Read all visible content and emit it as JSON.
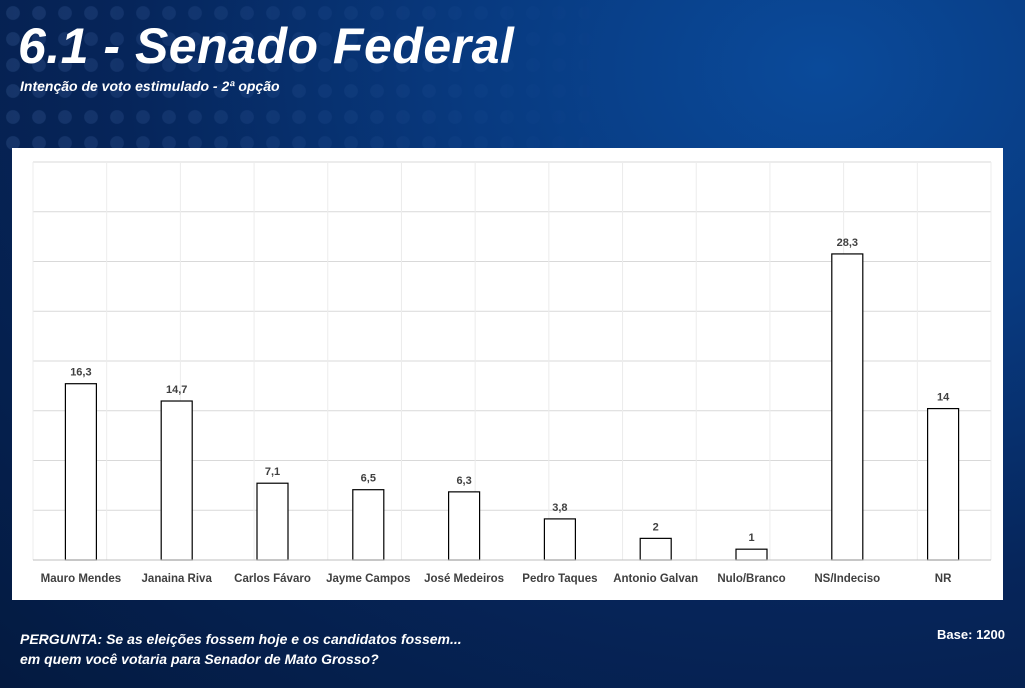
{
  "header": {
    "title": "6.1 - Senado Federal",
    "subtitle": "Intenção de voto estimulado - 2ª opção"
  },
  "footer": {
    "question_line1": "PERGUNTA:  Se as eleições fossem hoje e os candidatos fossem...",
    "question_line2": "em quem você votaria para Senador de Mato Grosso?",
    "base": "Base: 1200"
  },
  "chart_data": {
    "type": "bar",
    "title": "",
    "xlabel": "",
    "ylabel": "",
    "categories": [
      "Mauro Mendes",
      "Janaina Riva",
      "Carlos Fávaro",
      "Jayme Campos",
      "José Medeiros",
      "Pedro Taques",
      "Antonio Galvan",
      "Nulo/Branco",
      "NS/Indeciso",
      "NR"
    ],
    "values": [
      16.3,
      14.7,
      7.1,
      6.5,
      6.3,
      3.8,
      2,
      1,
      28.3,
      14
    ],
    "value_labels": [
      "16,3",
      "14,7",
      "7,1",
      "6,5",
      "6,3",
      "3,8",
      "2",
      "1",
      "28,3",
      "14"
    ],
    "ylim": [
      0,
      36.8
    ],
    "grid": true,
    "legend": "none",
    "colors": {
      "bar_fill": "#ffffff",
      "bar_stroke": "#000000",
      "grid": "#d9d9d9"
    }
  }
}
